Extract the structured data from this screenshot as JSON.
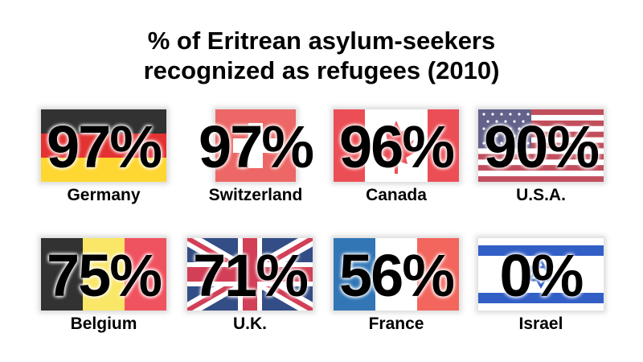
{
  "title_line1": "% of Eritrean asylum-seekers",
  "title_line2": "recognized as refugees (2010)",
  "chart_data": {
    "type": "table",
    "categories": [
      "Germany",
      "Switzerland",
      "Canada",
      "U.S.A.",
      "Belgium",
      "U.K.",
      "France",
      "Israel"
    ],
    "values": [
      97,
      97,
      96,
      90,
      75,
      71,
      56,
      0
    ],
    "value_labels": [
      "97%",
      "97%",
      "96%",
      "90%",
      "75%",
      "71%",
      "56%",
      "0%"
    ],
    "unit": "%"
  },
  "flags": [
    "germany-flag-icon",
    "switzerland-flag-icon",
    "canada-flag-icon",
    "usa-flag-icon",
    "belgium-flag-icon",
    "uk-flag-icon",
    "france-flag-icon",
    "israel-flag-icon"
  ],
  "colors": {
    "de_black": "#000000",
    "de_red": "#dd0000",
    "de_gold": "#ffce00",
    "ch_red": "#e8423f",
    "ca_red": "#e8232b",
    "us_red": "#b22234",
    "us_blue": "#3c3b6e",
    "be_yellow": "#fae042",
    "be_red": "#ed2939",
    "uk_blue": "#012169",
    "uk_red": "#c8102e",
    "fr_blue": "#0055a4",
    "fr_red": "#ef4135",
    "il_blue": "#0038b8"
  }
}
